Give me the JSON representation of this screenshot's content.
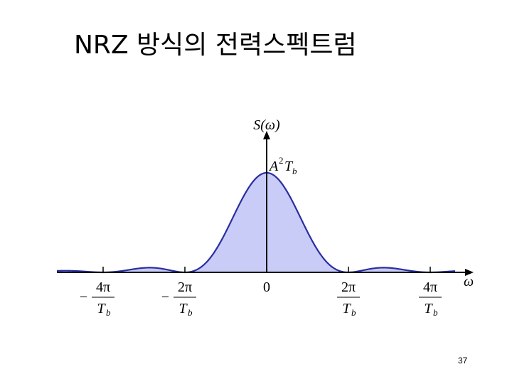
{
  "title": "NRZ 방식의 전력스펙트럼",
  "y_axis_label": "S(ω)",
  "x_axis_label": "ω",
  "peak_label": {
    "base": "A",
    "superscript": "2",
    "base2": "T",
    "subscript": "b"
  },
  "x_ticks": [
    {
      "sign": "−",
      "numerator": "4π",
      "denominator": "T",
      "subscript": "b"
    },
    {
      "sign": "−",
      "numerator": "2π",
      "denominator": "T",
      "subscript": "b"
    },
    {
      "label": "0"
    },
    {
      "numerator": "2π",
      "denominator": "T",
      "subscript": "b"
    },
    {
      "numerator": "4π",
      "denominator": "T",
      "subscript": "b"
    }
  ],
  "page_number": "37"
}
